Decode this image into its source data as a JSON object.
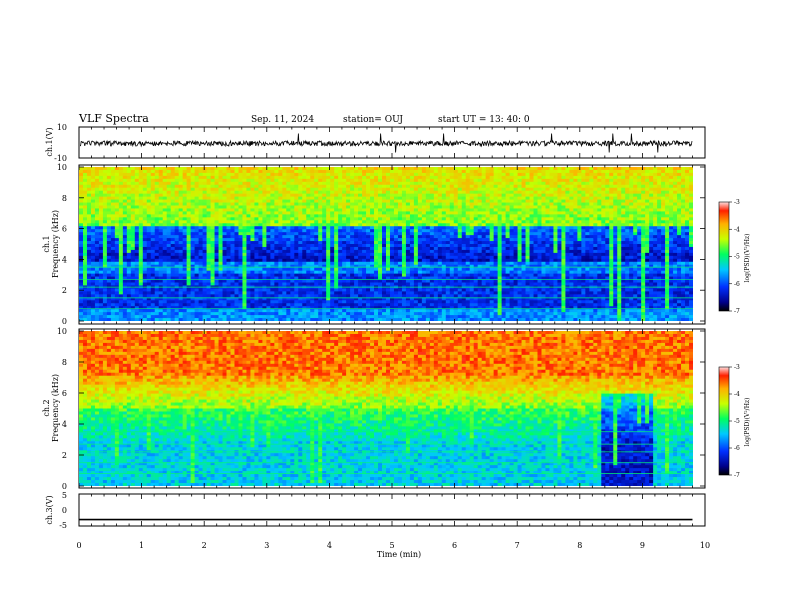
{
  "header": {
    "title": "VLF Spectra",
    "date": "Sep. 11, 2024",
    "station": "station= OUJ",
    "start": "start  UT  =   13: 40: 0"
  },
  "chart_data": [
    {
      "type": "line",
      "panel": "ch1-waveform",
      "ylabel": "ch.1(V)",
      "ylim": [
        -10,
        10
      ],
      "yticks": [
        "10",
        "-10"
      ],
      "xlim": [
        0,
        10
      ],
      "series": [
        {
          "values_description_free": true,
          "x": [
            0,
            9.8
          ],
          "y": [
            0,
            0
          ]
        }
      ]
    },
    {
      "type": "heatmap",
      "panel": "ch1-spectrogram",
      "ylabel_top": "ch.1",
      "ylabel": "Frequency  (kHz)",
      "ylim": [
        0,
        10
      ],
      "yticks": [
        "0",
        "2",
        "4",
        "6",
        "8",
        "10"
      ],
      "xlim": [
        0,
        10
      ],
      "colorbar": {
        "label": "log(PSD)(V²/Hz)",
        "ticks": [
          "-3",
          "-4",
          "-5",
          "-6",
          "-7"
        ],
        "range": [
          -7,
          -3
        ]
      }
    },
    {
      "type": "heatmap",
      "panel": "ch2-spectrogram",
      "ylabel_top": "ch.2",
      "ylabel": "Frequency  (kHz)",
      "ylim": [
        0,
        10
      ],
      "yticks": [
        "0",
        "2",
        "4",
        "6",
        "8",
        "10"
      ],
      "xlim": [
        0,
        10
      ],
      "colorbar": {
        "label": "log(PSD)(V²/Hz)",
        "ticks": [
          "-3",
          "-4",
          "-5",
          "-6",
          "-7"
        ],
        "range": [
          -7,
          -3
        ]
      }
    },
    {
      "type": "line",
      "panel": "ch3-waveform",
      "ylabel": "ch.3(V)",
      "ylim": [
        -5,
        5
      ],
      "yticks": [
        "5",
        "0",
        "-5"
      ],
      "xlim": [
        0,
        10
      ],
      "series": [
        {
          "x": [
            0,
            9.8
          ],
          "y": [
            -3,
            -3
          ]
        }
      ]
    }
  ],
  "xaxis": {
    "label": "Time  (min)",
    "ticks": [
      "0",
      "1",
      "2",
      "3",
      "4",
      "5",
      "6",
      "7",
      "8",
      "9",
      "10"
    ]
  },
  "colors": {
    "high": "#ff2a00",
    "mid": "#30ff30",
    "low": "#0000b0"
  }
}
